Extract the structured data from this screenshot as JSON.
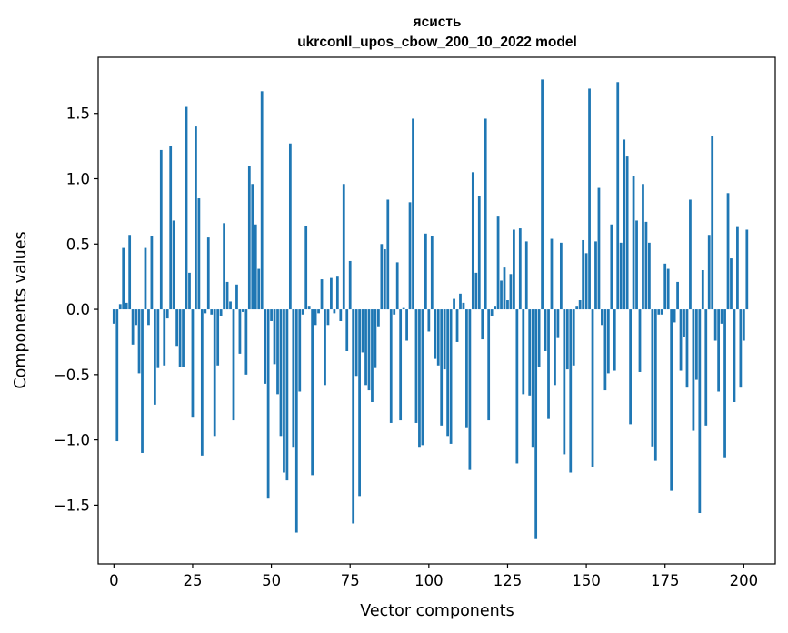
{
  "chart_data": {
    "type": "bar",
    "title": "ясисть",
    "subtitle": "ukrconll_upos_cbow_200_10_2022 model",
    "xlabel": "Vector components",
    "ylabel": "Components values",
    "xlim": [
      -5,
      210
    ],
    "ylim": [
      -1.95,
      1.93
    ],
    "xticks": [
      0,
      25,
      50,
      75,
      100,
      125,
      150,
      175,
      200
    ],
    "xtick_labels": [
      "0",
      "25",
      "50",
      "75",
      "100",
      "125",
      "150",
      "175",
      "200"
    ],
    "yticks": [
      -1.5,
      -1.0,
      -0.5,
      0.0,
      0.5,
      1.0,
      1.5
    ],
    "ytick_labels": [
      "−1.5",
      "−1.0",
      "−0.5",
      "0.0",
      "0.5",
      "1.0",
      "1.5"
    ],
    "grid": false,
    "bar_color": "#1f77b4",
    "values": [
      -0.11,
      -1.01,
      0.04,
      0.47,
      0.05,
      0.57,
      -0.27,
      -0.12,
      -0.49,
      -1.1,
      0.47,
      -0.12,
      0.56,
      -0.73,
      -0.45,
      1.22,
      -0.43,
      -0.07,
      1.25,
      0.68,
      -0.28,
      -0.44,
      -0.44,
      1.55,
      0.28,
      -0.83,
      1.4,
      0.85,
      -1.12,
      -0.03,
      0.55,
      -0.04,
      -0.97,
      -0.43,
      -0.05,
      0.66,
      0.21,
      0.06,
      -0.85,
      0.19,
      -0.34,
      -0.02,
      -0.5,
      1.1,
      0.96,
      0.65,
      0.31,
      1.67,
      -0.57,
      -1.45,
      -0.09,
      -0.42,
      -0.65,
      -0.97,
      -1.25,
      -1.31,
      1.27,
      -1.06,
      -1.71,
      -0.63,
      -0.04,
      0.64,
      0.02,
      -1.27,
      -0.12,
      -0.03,
      0.23,
      -0.58,
      -0.12,
      0.24,
      -0.03,
      0.25,
      -0.09,
      0.96,
      -0.32,
      0.37,
      -1.64,
      -0.51,
      -1.43,
      -0.33,
      -0.58,
      -0.62,
      -0.71,
      -0.45,
      -0.13,
      0.5,
      0.46,
      0.84,
      -0.87,
      -0.04,
      0.36,
      -0.85,
      0.01,
      -0.24,
      0.82,
      1.46,
      -0.87,
      -1.06,
      -1.04,
      0.58,
      -0.17,
      0.56,
      -0.38,
      -0.43,
      -0.89,
      -0.46,
      -0.97,
      -1.03,
      0.08,
      -0.25,
      0.12,
      0.05,
      -0.91,
      -1.23,
      1.05,
      0.28,
      0.87,
      -0.23,
      1.46,
      -0.85,
      -0.05,
      0.02,
      0.71,
      0.22,
      0.32,
      0.07,
      0.27,
      0.61,
      -1.18,
      0.62,
      -0.65,
      0.52,
      -0.66,
      -1.06,
      -1.76,
      -0.44,
      1.76,
      -0.32,
      -0.84,
      0.54,
      -0.58,
      -0.22,
      0.51,
      -1.11,
      -0.46,
      -1.25,
      -0.43,
      0.02,
      0.07,
      0.53,
      0.43,
      1.69,
      -1.21,
      0.52,
      0.93,
      -0.12,
      -0.62,
      -0.49,
      0.65,
      -0.47,
      1.74,
      0.51,
      1.3,
      1.17,
      -0.88,
      1.02,
      0.68,
      -0.48,
      0.96,
      0.67,
      0.51,
      -1.05,
      -1.16,
      -0.04,
      -0.04,
      0.35,
      0.31,
      -1.39,
      -0.1,
      0.21,
      -0.47,
      -0.21,
      -0.6,
      0.84,
      -0.93,
      -0.54,
      -1.56,
      0.3,
      -0.89,
      0.57,
      1.33,
      -0.24,
      -0.63,
      -0.11,
      -1.14,
      0.89,
      0.39,
      -0.71,
      0.63,
      -0.6,
      -0.24,
      0.61
    ]
  }
}
